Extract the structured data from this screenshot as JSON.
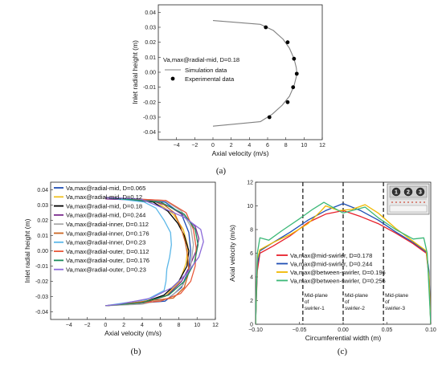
{
  "chart_data": [
    {
      "panel": "(a)",
      "type": "line",
      "xlabel": "Axial velocity (m/s)",
      "ylabel": "Inlet radial height (m)",
      "xlim": [
        -6,
        12
      ],
      "ylim": [
        -0.045,
        0.045
      ],
      "xticks": [
        -4,
        -2,
        0,
        2,
        4,
        6,
        8,
        10,
        12
      ],
      "yticks": [
        -0.04,
        -0.03,
        -0.02,
        -0.01,
        0.0,
        0.01,
        0.02,
        0.03,
        0.04
      ],
      "ytick_labels": [
        "-0.04",
        "-0.03",
        "-0.02",
        "-0.01",
        "0.00",
        "0.01",
        "0.02",
        "0.03",
        "0.04"
      ],
      "legend_title": "Va,max@radial-mid, D=0.18",
      "legend": [
        "Simulation data",
        "Experimental data"
      ],
      "simulation": {
        "name": "Simulation data",
        "color": "#808080",
        "points": [
          [
            0,
            0.0345
          ],
          [
            5.2,
            0.032
          ],
          [
            6.6,
            0.028
          ],
          [
            7.7,
            0.022
          ],
          [
            8.4,
            0.016
          ],
          [
            8.9,
            0.009
          ],
          [
            9.15,
            0.003
          ],
          [
            9.2,
            0.0
          ],
          [
            9.15,
            -0.003
          ],
          [
            8.9,
            -0.009
          ],
          [
            8.4,
            -0.016
          ],
          [
            7.6,
            -0.022
          ],
          [
            6.5,
            -0.028
          ],
          [
            5.2,
            -0.033
          ],
          [
            0,
            -0.036
          ]
        ]
      },
      "experimental": {
        "name": "Experimental data",
        "points": [
          [
            5.8,
            0.03
          ],
          [
            8.2,
            0.02
          ],
          [
            8.9,
            0.009
          ],
          [
            9.2,
            -0.001
          ],
          [
            8.8,
            -0.01
          ],
          [
            8.2,
            -0.02
          ],
          [
            6.2,
            -0.03
          ]
        ]
      }
    },
    {
      "panel": "(b)",
      "type": "line",
      "xlabel": "Axial velocity (m/s)",
      "ylabel": "Inlet radial height (m)",
      "xlim": [
        -6,
        12
      ],
      "ylim": [
        -0.045,
        0.045
      ],
      "xticks": [
        -4,
        -2,
        0,
        2,
        4,
        6,
        8,
        10,
        12
      ],
      "yticks": [
        -0.04,
        -0.03,
        -0.02,
        -0.01,
        0.0,
        0.01,
        0.02,
        0.03,
        0.04
      ],
      "ytick_labels": [
        "-0.04",
        "-0.03",
        "-0.02",
        "-0.01",
        "0.00",
        "0.01",
        "0.02",
        "0.03",
        "0.04"
      ],
      "series": [
        {
          "name": "Va,max@radial-mid, D=0.065",
          "color": "#1f4fb4",
          "points": [
            [
              0,
              0.035
            ],
            [
              6.5,
              0.032
            ],
            [
              8.3,
              0.024
            ],
            [
              9.1,
              0.012
            ],
            [
              9.3,
              0.0
            ],
            [
              9.1,
              -0.012
            ],
            [
              8.3,
              -0.024
            ],
            [
              6.5,
              -0.033
            ],
            [
              0,
              -0.036
            ]
          ]
        },
        {
          "name": "Va,max@radial-mid, D=0.12",
          "color": "#f0c020",
          "points": [
            [
              0,
              0.035
            ],
            [
              5.6,
              0.032
            ],
            [
              7.4,
              0.024
            ],
            [
              8.5,
              0.014
            ],
            [
              9.0,
              0.003
            ],
            [
              8.8,
              -0.008
            ],
            [
              8.1,
              -0.02
            ],
            [
              6.5,
              -0.03
            ],
            [
              3.5,
              -0.034
            ],
            [
              0,
              -0.036
            ]
          ]
        },
        {
          "name": "Va,max@radial-mid, D=0.18",
          "color": "#000000",
          "points": [
            [
              0,
              0.035
            ],
            [
              5.2,
              0.032
            ],
            [
              6.8,
              0.026
            ],
            [
              7.9,
              0.018
            ],
            [
              8.6,
              0.01
            ],
            [
              9.1,
              0.0
            ],
            [
              8.9,
              -0.01
            ],
            [
              8.0,
              -0.02
            ],
            [
              6.4,
              -0.029
            ],
            [
              4.0,
              -0.034
            ],
            [
              0,
              -0.036
            ]
          ]
        },
        {
          "name": "Va,max@radial-mid, D=0.244",
          "color": "#7b2d8e",
          "points": [
            [
              0,
              0.034
            ],
            [
              5.0,
              0.033
            ],
            [
              7.0,
              0.029
            ],
            [
              8.6,
              0.023
            ],
            [
              9.8,
              0.016
            ],
            [
              10.2,
              0.008
            ],
            [
              9.9,
              0.0
            ],
            [
              9.2,
              -0.01
            ],
            [
              8.3,
              -0.02
            ],
            [
              6.8,
              -0.029
            ],
            [
              4.4,
              -0.034
            ],
            [
              0,
              -0.036
            ]
          ]
        },
        {
          "name": "Va,max@radial-inner, D=0.112",
          "color": "#a8a8a8",
          "points": [
            [
              0,
              0.035
            ],
            [
              6.5,
              0.033
            ],
            [
              8.3,
              0.026
            ],
            [
              9.3,
              0.016
            ],
            [
              9.6,
              0.004
            ],
            [
              9.3,
              -0.01
            ],
            [
              8.5,
              -0.022
            ],
            [
              7.0,
              -0.031
            ],
            [
              4.0,
              -0.035
            ],
            [
              0,
              -0.036
            ]
          ]
        },
        {
          "name": "Va,max@radial-inner, D=0.176",
          "color": "#cc6622",
          "points": [
            [
              0,
              0.035
            ],
            [
              6.0,
              0.032
            ],
            [
              7.5,
              0.025
            ],
            [
              8.2,
              0.016
            ],
            [
              8.7,
              0.006
            ],
            [
              9.0,
              -0.004
            ],
            [
              9.1,
              -0.014
            ],
            [
              8.6,
              -0.024
            ],
            [
              7.4,
              -0.031
            ],
            [
              0,
              -0.036
            ]
          ]
        },
        {
          "name": "Va,max@radial-inner, D=0.23",
          "color": "#5bb7e8",
          "points": [
            [
              0,
              0.035
            ],
            [
              4.2,
              0.032
            ],
            [
              5.5,
              0.028
            ],
            [
              6.4,
              0.02
            ],
            [
              7.1,
              0.012
            ],
            [
              7.2,
              0.004
            ],
            [
              7.0,
              -0.004
            ],
            [
              6.7,
              -0.012
            ],
            [
              6.6,
              -0.02
            ],
            [
              6.4,
              -0.026
            ],
            [
              4.5,
              -0.032
            ],
            [
              0,
              -0.036
            ]
          ]
        },
        {
          "name": "Va,max@radial-outer, D=0.112",
          "color": "#e8593a",
          "points": [
            [
              0,
              0.035
            ],
            [
              6.6,
              0.033
            ],
            [
              8.8,
              0.025
            ],
            [
              9.6,
              0.014
            ],
            [
              9.9,
              0.002
            ],
            [
              9.8,
              -0.01
            ],
            [
              9.3,
              -0.02
            ],
            [
              8.2,
              -0.028
            ],
            [
              6.0,
              -0.033
            ],
            [
              0,
              -0.036
            ]
          ]
        },
        {
          "name": "Va,max@radial-outer, D=0.176",
          "color": "#1a8a5a",
          "points": [
            [
              0,
              0.035
            ],
            [
              6.0,
              0.032
            ],
            [
              8.6,
              0.024
            ],
            [
              9.8,
              0.014
            ],
            [
              10.1,
              0.004
            ],
            [
              9.7,
              -0.008
            ],
            [
              8.6,
              -0.02
            ],
            [
              6.9,
              -0.029
            ],
            [
              4.0,
              -0.034
            ],
            [
              0,
              -0.036
            ]
          ]
        },
        {
          "name": "Va,max@radial-outer, D=0.23",
          "color": "#8c6ad9",
          "points": [
            [
              0,
              0.035
            ],
            [
              3.8,
              0.034
            ],
            [
              5.5,
              0.03
            ],
            [
              8.6,
              0.022
            ],
            [
              10.4,
              0.014
            ],
            [
              10.7,
              0.006
            ],
            [
              10.2,
              -0.004
            ],
            [
              9.0,
              -0.014
            ],
            [
              7.3,
              -0.024
            ],
            [
              5.0,
              -0.031
            ],
            [
              1.5,
              -0.035
            ],
            [
              0,
              -0.036
            ]
          ]
        }
      ]
    },
    {
      "panel": "(c)",
      "type": "line",
      "xlabel": "Circumferential width (m)",
      "ylabel": "Axial velocity (m/s)",
      "xlim": [
        -0.1,
        0.1
      ],
      "ylim": [
        0,
        12
      ],
      "xticks": [
        -0.1,
        -0.05,
        0.0,
        0.05,
        0.1
      ],
      "xtick_labels": [
        "−0.10",
        "−0.05",
        "0.00",
        "0.05",
        "0.10"
      ],
      "yticks": [
        0,
        2,
        4,
        6,
        8,
        10,
        12
      ],
      "vlines": [
        -0.046,
        0.0,
        0.046
      ],
      "annotations": [
        {
          "x": -0.046,
          "lines": [
            "Mid-plane",
            "of",
            "swirler-1"
          ]
        },
        {
          "x": 0.0,
          "lines": [
            "Mid-plane",
            "of",
            "swirler-2"
          ]
        },
        {
          "x": 0.046,
          "lines": [
            "Mid-plane",
            "of",
            "swirler-3"
          ]
        }
      ],
      "inset_labels": [
        "1",
        "2",
        "3"
      ],
      "series": [
        {
          "name": "Va,max@mid-swirler, D=0.178",
          "color": "#e8202a",
          "points": [
            [
              -0.1,
              0.0
            ],
            [
              -0.098,
              4.5
            ],
            [
              -0.095,
              6.0
            ],
            [
              -0.08,
              6.6
            ],
            [
              -0.06,
              7.5
            ],
            [
              -0.04,
              8.6
            ],
            [
              -0.02,
              9.3
            ],
            [
              0.0,
              9.6
            ],
            [
              0.02,
              9.1
            ],
            [
              0.04,
              8.5
            ],
            [
              0.06,
              7.7
            ],
            [
              0.08,
              6.8
            ],
            [
              0.095,
              6.0
            ],
            [
              0.098,
              4.0
            ],
            [
              0.1,
              0.0
            ]
          ]
        },
        {
          "name": "Va,max@mid-swirler, D=0.244",
          "color": "#1f4fb4",
          "points": [
            [
              -0.1,
              0.0
            ],
            [
              -0.098,
              5.0
            ],
            [
              -0.095,
              6.2
            ],
            [
              -0.08,
              6.9
            ],
            [
              -0.06,
              7.8
            ],
            [
              -0.04,
              8.8
            ],
            [
              -0.02,
              9.6
            ],
            [
              0.0,
              10.2
            ],
            [
              0.02,
              9.6
            ],
            [
              0.04,
              8.8
            ],
            [
              0.06,
              7.8
            ],
            [
              0.08,
              6.9
            ],
            [
              0.095,
              6.1
            ],
            [
              0.098,
              4.5
            ],
            [
              0.1,
              0.0
            ]
          ]
        },
        {
          "name": "Va,max@between-swirler, D=0.196",
          "color": "#f0b800",
          "points": [
            [
              -0.1,
              0.0
            ],
            [
              -0.098,
              5.5
            ],
            [
              -0.095,
              6.3
            ],
            [
              -0.08,
              6.9
            ],
            [
              -0.06,
              7.6
            ],
            [
              -0.04,
              8.5
            ],
            [
              -0.025,
              9.6
            ],
            [
              -0.02,
              10.0
            ],
            [
              -0.005,
              9.6
            ],
            [
              0.01,
              9.7
            ],
            [
              0.025,
              10.1
            ],
            [
              0.04,
              9.4
            ],
            [
              0.06,
              8.1
            ],
            [
              0.08,
              7.0
            ],
            [
              0.095,
              6.2
            ],
            [
              0.098,
              4.0
            ],
            [
              0.1,
              0.0
            ]
          ]
        },
        {
          "name": "Va,max@between-swirler, D=0.256",
          "color": "#3cb878",
          "points": [
            [
              -0.1,
              0.0
            ],
            [
              -0.098,
              6.0
            ],
            [
              -0.095,
              7.3
            ],
            [
              -0.085,
              7.1
            ],
            [
              -0.07,
              7.9
            ],
            [
              -0.05,
              8.9
            ],
            [
              -0.035,
              9.7
            ],
            [
              -0.022,
              10.3
            ],
            [
              -0.01,
              9.8
            ],
            [
              0.0,
              9.4
            ],
            [
              0.01,
              9.6
            ],
            [
              0.025,
              9.9
            ],
            [
              0.04,
              9.0
            ],
            [
              0.06,
              8.0
            ],
            [
              0.08,
              7.2
            ],
            [
              0.092,
              7.3
            ],
            [
              0.096,
              6.0
            ],
            [
              0.1,
              0.0
            ]
          ]
        }
      ]
    }
  ],
  "labels": {
    "panel_a": "(a)",
    "panel_b": "(b)",
    "panel_c": "(c)"
  }
}
